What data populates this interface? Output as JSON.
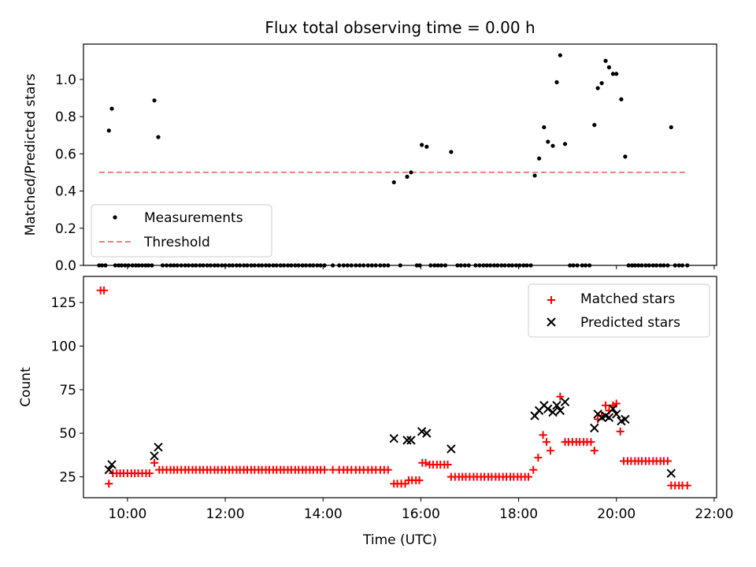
{
  "title": "Flux total observing time = 0.00 h",
  "chart_data": [
    {
      "type": "scatter",
      "ylabel": "Matched/Predicted stars",
      "xlim": [
        9.1,
        22.05
      ],
      "ylim": [
        0,
        1.19
      ],
      "grid": false,
      "legend_position": "lower-left",
      "yticks": [
        0.0,
        0.2,
        0.4,
        0.6,
        0.8,
        1.0
      ],
      "ytick_labels": [
        "0.0",
        "0.2",
        "0.4",
        "0.6",
        "0.8",
        "1.0"
      ],
      "series": [
        {
          "name": "Measurements",
          "kind": "scatter",
          "color": "#000000",
          "points": [
            [
              9.62,
              0.725
            ],
            [
              9.68,
              0.843
            ],
            [
              10.55,
              0.887
            ],
            [
              10.63,
              0.69
            ],
            [
              15.45,
              0.447
            ],
            [
              15.72,
              0.477
            ],
            [
              15.8,
              0.5
            ],
            [
              16.02,
              0.648
            ],
            [
              16.12,
              0.638
            ],
            [
              16.62,
              0.61
            ],
            [
              18.33,
              0.483
            ],
            [
              18.42,
              0.575
            ],
            [
              18.52,
              0.743
            ],
            [
              18.6,
              0.665
            ],
            [
              18.7,
              0.643
            ],
            [
              18.78,
              0.985
            ],
            [
              18.85,
              1.13
            ],
            [
              18.95,
              0.653
            ],
            [
              19.55,
              0.755
            ],
            [
              19.62,
              0.953
            ],
            [
              19.7,
              0.98
            ],
            [
              19.78,
              1.1
            ],
            [
              19.85,
              1.065
            ],
            [
              19.93,
              1.03
            ],
            [
              20.0,
              1.03
            ],
            [
              20.1,
              0.893
            ],
            [
              20.18,
              0.585
            ],
            [
              21.12,
              0.743
            ]
          ],
          "zero_x": [
            9.42,
            9.48,
            9.55,
            9.75,
            9.82,
            9.88,
            9.95,
            10.02,
            10.1,
            10.17,
            10.23,
            10.3,
            10.37,
            10.43,
            10.5,
            10.72,
            10.8,
            10.88,
            10.95,
            11.02,
            11.1,
            11.18,
            11.25,
            11.33,
            11.4,
            11.48,
            11.55,
            11.63,
            11.7,
            11.78,
            11.85,
            11.93,
            12.0,
            12.08,
            12.15,
            12.23,
            12.3,
            12.38,
            12.45,
            12.53,
            12.6,
            12.68,
            12.75,
            12.83,
            12.9,
            12.98,
            13.05,
            13.13,
            13.2,
            13.28,
            13.35,
            13.43,
            13.5,
            13.58,
            13.65,
            13.73,
            13.8,
            13.88,
            13.95,
            14.03,
            14.2,
            14.33,
            14.42,
            14.5,
            14.58,
            14.67,
            14.75,
            14.83,
            14.92,
            15.0,
            15.08,
            15.17,
            15.25,
            15.33,
            15.58,
            15.92,
            15.98,
            16.2,
            16.28,
            16.35,
            16.42,
            16.5,
            16.75,
            16.82,
            16.9,
            16.98,
            17.12,
            17.2,
            17.28,
            17.35,
            17.42,
            17.5,
            17.57,
            17.65,
            17.72,
            17.8,
            17.87,
            17.95,
            18.02,
            18.1,
            18.17,
            18.25,
            19.05,
            19.12,
            19.2,
            19.3,
            19.37,
            19.45,
            20.25,
            20.32,
            20.38,
            20.45,
            20.52,
            20.6,
            20.67,
            20.75,
            20.82,
            20.9,
            20.97,
            21.05,
            21.2,
            21.28,
            21.35,
            21.45
          ]
        },
        {
          "name": "Threshold",
          "kind": "line",
          "style": "dashed",
          "color": "#f08080",
          "x": [
            9.42,
            21.45
          ],
          "y": [
            0.5,
            0.5
          ]
        }
      ]
    },
    {
      "type": "scatter",
      "xlabel": "Time (UTC)",
      "ylabel": "Count",
      "xlim": [
        9.1,
        22.05
      ],
      "ylim": [
        13,
        140
      ],
      "grid": false,
      "legend_position": "upper-right",
      "xticks": [
        10,
        12,
        14,
        16,
        18,
        20,
        22
      ],
      "xtick_labels": [
        "10:00",
        "12:00",
        "14:00",
        "16:00",
        "18:00",
        "20:00",
        "22:00"
      ],
      "yticks": [
        25,
        50,
        75,
        100,
        125
      ],
      "ytick_labels": [
        "25",
        "50",
        "75",
        "100",
        "125"
      ],
      "series": [
        {
          "name": "Matched stars",
          "marker": "plus",
          "color": "#ff0000",
          "points": [
            [
              9.45,
              132
            ],
            [
              9.52,
              132
            ],
            [
              9.62,
              21
            ],
            [
              9.7,
              27
            ],
            [
              9.78,
              27
            ],
            [
              9.85,
              27
            ],
            [
              9.92,
              27
            ],
            [
              10.0,
              27
            ],
            [
              10.08,
              27
            ],
            [
              10.15,
              27
            ],
            [
              10.22,
              27
            ],
            [
              10.3,
              27
            ],
            [
              10.38,
              27
            ],
            [
              10.45,
              27
            ],
            [
              10.55,
              33
            ],
            [
              10.65,
              29
            ],
            [
              10.72,
              29
            ],
            [
              10.8,
              29
            ],
            [
              10.88,
              29
            ],
            [
              10.95,
              29
            ],
            [
              11.02,
              29
            ],
            [
              11.1,
              29
            ],
            [
              11.18,
              29
            ],
            [
              11.25,
              29
            ],
            [
              11.33,
              29
            ],
            [
              11.4,
              29
            ],
            [
              11.48,
              29
            ],
            [
              11.55,
              29
            ],
            [
              11.63,
              29
            ],
            [
              11.7,
              29
            ],
            [
              11.78,
              29
            ],
            [
              11.85,
              29
            ],
            [
              11.93,
              29
            ],
            [
              12.0,
              29
            ],
            [
              12.08,
              29
            ],
            [
              12.15,
              29
            ],
            [
              12.23,
              29
            ],
            [
              12.3,
              29
            ],
            [
              12.38,
              29
            ],
            [
              12.45,
              29
            ],
            [
              12.53,
              29
            ],
            [
              12.6,
              29
            ],
            [
              12.68,
              29
            ],
            [
              12.75,
              29
            ],
            [
              12.83,
              29
            ],
            [
              12.9,
              29
            ],
            [
              12.98,
              29
            ],
            [
              13.05,
              29
            ],
            [
              13.13,
              29
            ],
            [
              13.2,
              29
            ],
            [
              13.28,
              29
            ],
            [
              13.35,
              29
            ],
            [
              13.43,
              29
            ],
            [
              13.5,
              29
            ],
            [
              13.58,
              29
            ],
            [
              13.65,
              29
            ],
            [
              13.73,
              29
            ],
            [
              13.8,
              29
            ],
            [
              13.88,
              29
            ],
            [
              13.95,
              29
            ],
            [
              14.03,
              29
            ],
            [
              14.2,
              29
            ],
            [
              14.33,
              29
            ],
            [
              14.42,
              29
            ],
            [
              14.5,
              29
            ],
            [
              14.58,
              29
            ],
            [
              14.67,
              29
            ],
            [
              14.75,
              29
            ],
            [
              14.83,
              29
            ],
            [
              14.92,
              29
            ],
            [
              15.0,
              29
            ],
            [
              15.08,
              29
            ],
            [
              15.17,
              29
            ],
            [
              15.25,
              29
            ],
            [
              15.33,
              29
            ],
            [
              15.45,
              21
            ],
            [
              15.52,
              21
            ],
            [
              15.6,
              21
            ],
            [
              15.68,
              21
            ],
            [
              15.75,
              23
            ],
            [
              15.82,
              23
            ],
            [
              15.9,
              23
            ],
            [
              15.97,
              23
            ],
            [
              16.03,
              33
            ],
            [
              16.1,
              33
            ],
            [
              16.18,
              32
            ],
            [
              16.25,
              32
            ],
            [
              16.33,
              32
            ],
            [
              16.4,
              32
            ],
            [
              16.48,
              32
            ],
            [
              16.55,
              32
            ],
            [
              16.62,
              25
            ],
            [
              16.7,
              25
            ],
            [
              16.78,
              25
            ],
            [
              16.85,
              25
            ],
            [
              16.92,
              25
            ],
            [
              17.0,
              25
            ],
            [
              17.08,
              25
            ],
            [
              17.15,
              25
            ],
            [
              17.23,
              25
            ],
            [
              17.3,
              25
            ],
            [
              17.38,
              25
            ],
            [
              17.45,
              25
            ],
            [
              17.53,
              25
            ],
            [
              17.6,
              25
            ],
            [
              17.68,
              25
            ],
            [
              17.75,
              25
            ],
            [
              17.83,
              25
            ],
            [
              17.9,
              25
            ],
            [
              17.98,
              25
            ],
            [
              18.05,
              25
            ],
            [
              18.13,
              25
            ],
            [
              18.2,
              25
            ],
            [
              18.3,
              29
            ],
            [
              18.4,
              36
            ],
            [
              18.5,
              49
            ],
            [
              18.57,
              45
            ],
            [
              18.65,
              40
            ],
            [
              18.85,
              71
            ],
            [
              18.95,
              45
            ],
            [
              19.02,
              45
            ],
            [
              19.1,
              45
            ],
            [
              19.18,
              45
            ],
            [
              19.25,
              45
            ],
            [
              19.33,
              45
            ],
            [
              19.4,
              45
            ],
            [
              19.48,
              45
            ],
            [
              19.55,
              40
            ],
            [
              19.62,
              58
            ],
            [
              19.7,
              60
            ],
            [
              19.78,
              66
            ],
            [
              19.85,
              63
            ],
            [
              19.93,
              66
            ],
            [
              20.0,
              67
            ],
            [
              20.08,
              51
            ],
            [
              20.15,
              34
            ],
            [
              20.23,
              34
            ],
            [
              20.3,
              34
            ],
            [
              20.38,
              34
            ],
            [
              20.45,
              34
            ],
            [
              20.52,
              34
            ],
            [
              20.6,
              34
            ],
            [
              20.67,
              34
            ],
            [
              20.75,
              34
            ],
            [
              20.82,
              34
            ],
            [
              20.9,
              34
            ],
            [
              20.97,
              34
            ],
            [
              21.05,
              34
            ],
            [
              21.12,
              20
            ],
            [
              21.2,
              20
            ],
            [
              21.28,
              20
            ],
            [
              21.35,
              20
            ],
            [
              21.45,
              20
            ]
          ]
        },
        {
          "name": "Predicted stars",
          "marker": "x",
          "color": "#000000",
          "points": [
            [
              9.62,
              29
            ],
            [
              9.68,
              32
            ],
            [
              10.55,
              37
            ],
            [
              10.63,
              42
            ],
            [
              15.45,
              47
            ],
            [
              15.72,
              46
            ],
            [
              15.8,
              46
            ],
            [
              16.02,
              51
            ],
            [
              16.12,
              50
            ],
            [
              16.62,
              41
            ],
            [
              18.33,
              60
            ],
            [
              18.42,
              63
            ],
            [
              18.52,
              66
            ],
            [
              18.6,
              64
            ],
            [
              18.7,
              62
            ],
            [
              18.78,
              66
            ],
            [
              18.85,
              63
            ],
            [
              18.95,
              68
            ],
            [
              19.55,
              53
            ],
            [
              19.62,
              61
            ],
            [
              19.7,
              59
            ],
            [
              19.78,
              60
            ],
            [
              19.85,
              59
            ],
            [
              19.93,
              64
            ],
            [
              20.0,
              61
            ],
            [
              20.1,
              57
            ],
            [
              20.18,
              58
            ],
            [
              21.12,
              27
            ]
          ]
        }
      ]
    }
  ]
}
